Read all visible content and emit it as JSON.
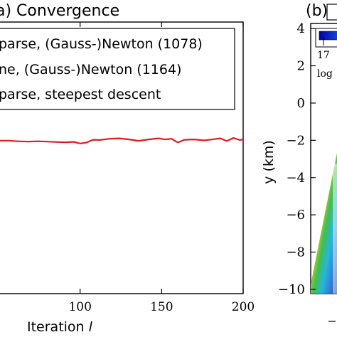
{
  "chart_data": [
    {
      "panel": "a",
      "type": "line",
      "title": "a) Convergence",
      "xlabel": "Iteration",
      "xlabel_var": "l",
      "x_ticks": [
        100,
        150,
        200
      ],
      "xlim": [
        50,
        200
      ],
      "legend": {
        "placement": "top",
        "entries": [
          "parse, (Gauss-)Newton (1078)",
          "ne, (Gauss-)Newton (1164)",
          "parse, steepest descent"
        ]
      },
      "series": [
        {
          "name": "parse, steepest descent",
          "color": "#e41a1c",
          "x": [
            50,
            56,
            62,
            68,
            74,
            80,
            86,
            92,
            96,
            100,
            104,
            108,
            112,
            118,
            124,
            130,
            136,
            142,
            148,
            152,
            156,
            160,
            164,
            170,
            176,
            182,
            186,
            190,
            194,
            198,
            200
          ],
          "y": [
            0.49,
            0.49,
            0.46,
            0.44,
            0.46,
            0.44,
            0.42,
            0.41,
            0.43,
            0.35,
            0.4,
            0.53,
            0.52,
            0.58,
            0.6,
            0.55,
            0.48,
            0.55,
            0.6,
            0.55,
            0.58,
            0.4,
            0.53,
            0.55,
            0.5,
            0.56,
            0.6,
            0.47,
            0.62,
            0.52,
            0.55
          ]
        }
      ]
    },
    {
      "panel": "b",
      "type": "heatmap",
      "title": "(b) ",
      "ylabel": "y (km)",
      "y_ticks": [
        4,
        2,
        0,
        -2,
        -4,
        -6,
        -8,
        -10
      ],
      "ylim": [
        -10,
        4.5
      ],
      "colorbar": {
        "tick_label": "17",
        "label": "log"
      }
    }
  ]
}
